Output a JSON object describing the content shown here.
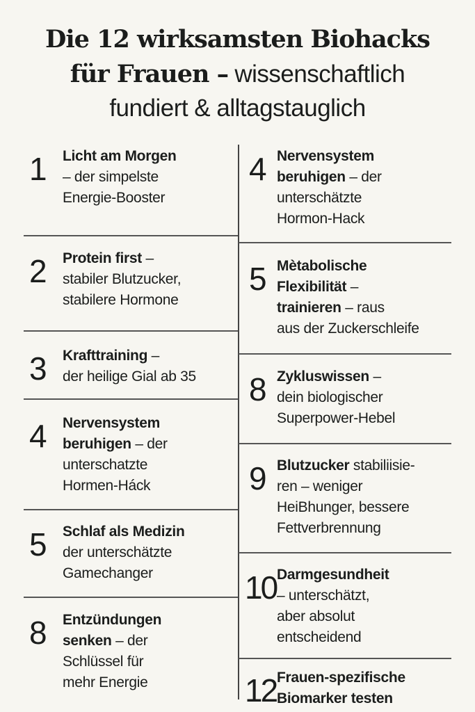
{
  "title": {
    "line1": "Die 12 wirksamsten Biohacks",
    "line2_serif": "für Frauen –",
    "line2_sans": "wissenschaftlich",
    "line3": "fundiert & alltagstauglich"
  },
  "left": [
    {
      "number": "1",
      "lines": [
        {
          "b": "Licht am Morgen",
          "t": ""
        },
        {
          "b": "",
          "t": "– der simpelste"
        },
        {
          "b": "",
          "t": "Energie-Booster"
        }
      ]
    },
    {
      "number": "2",
      "lines": [
        {
          "b": "Protein first",
          "t": " –"
        },
        {
          "b": "",
          "t": "stabiler Blutzucker,"
        },
        {
          "b": "",
          "t": "stabilere Hormone"
        }
      ]
    },
    {
      "number": "3",
      "lines": [
        {
          "b": "Krafttraining",
          "t": " –"
        },
        {
          "b": "",
          "t": "der heilige Gial ab 35"
        }
      ]
    },
    {
      "number": "4",
      "lines": [
        {
          "b": "Nervensystem",
          "t": ""
        },
        {
          "b": "beruhigen",
          "t": " – der"
        },
        {
          "b": "",
          "t": "unterschatzte"
        },
        {
          "b": "",
          "t": "Hormen-Háck"
        }
      ]
    },
    {
      "number": "5",
      "lines": [
        {
          "b": "Schlaf als Medizin",
          "t": ""
        },
        {
          "b": "",
          "t": "der unterschätzte"
        },
        {
          "b": "",
          "t": "Gamechanger"
        }
      ]
    },
    {
      "number": "8",
      "lines": [
        {
          "b": "Entzündungen",
          "t": ""
        },
        {
          "b": "senken",
          "t": " – der"
        },
        {
          "b": "",
          "t": "Schlüssel für"
        },
        {
          "b": "",
          "t": "mehr Energie"
        }
      ]
    }
  ],
  "right": [
    {
      "number": "4",
      "lines": [
        {
          "b": "Nervensystem",
          "t": ""
        },
        {
          "b": "beruhigen",
          "t": " – der"
        },
        {
          "b": "",
          "t": "unterschätzte"
        },
        {
          "b": "",
          "t": "Hormon-Hack"
        }
      ]
    },
    {
      "number": "5",
      "lines": [
        {
          "b": "Mètabolische",
          "t": ""
        },
        {
          "b": "Flexibilität",
          "t": " –"
        },
        {
          "b": "trainieren",
          "t": " – raus"
        },
        {
          "b": "",
          "t": "aus der Zuckerschleife"
        }
      ]
    },
    {
      "number": "8",
      "lines": [
        {
          "b": "Zykluswissen",
          "t": " –"
        },
        {
          "b": "",
          "t": "dein biologischer"
        },
        {
          "b": "",
          "t": "Superpower-Hebel"
        }
      ]
    },
    {
      "number": "9",
      "lines": [
        {
          "b": "Blutzucker",
          "t": " stabiliisie-"
        },
        {
          "b": "",
          "t": "ren – weniger"
        },
        {
          "b": "",
          "t": "HeiBhunger, bessere"
        },
        {
          "b": "",
          "t": "Fettverbrennung"
        }
      ]
    },
    {
      "number": "10",
      "lines": [
        {
          "b": "Darmgesundheit",
          "t": ""
        },
        {
          "b": "",
          "t": "– unterschätzt,"
        },
        {
          "b": "",
          "t": "aber absolut"
        },
        {
          "b": "",
          "t": "entscheidend"
        }
      ]
    },
    {
      "number": "12",
      "lines": [
        {
          "b": "Frauen-spezifische",
          "t": ""
        },
        {
          "b": "Biomarker testen",
          "t": ""
        }
      ]
    }
  ]
}
